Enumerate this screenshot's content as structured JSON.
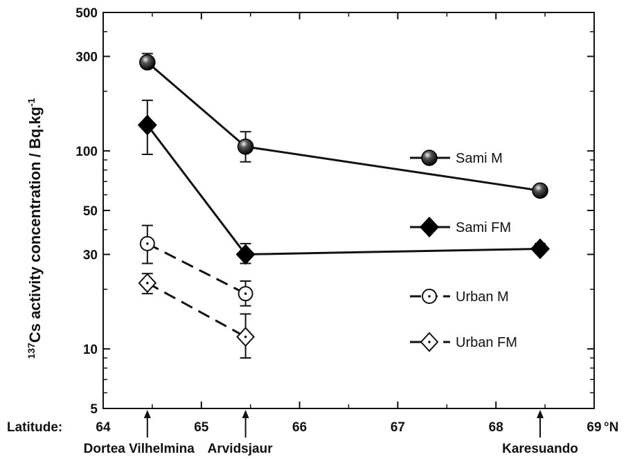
{
  "chart_data": {
    "type": "line",
    "ylabel_sup": "137",
    "ylabel": "Cs activity concentration / Bq.kg",
    "ylabel_exp": "-1",
    "yscale": "log",
    "ylim": [
      5,
      500
    ],
    "yticks": [
      5,
      10,
      30,
      50,
      100,
      300,
      500
    ],
    "xlabel_prefix": "Latitude:",
    "xunit": "°N",
    "xlim": [
      64,
      69
    ],
    "xticks": [
      64,
      65,
      66,
      67,
      68,
      69
    ],
    "sites": [
      {
        "name": "Dortea Vilhelmina",
        "x": 64.45
      },
      {
        "name": "Arvidsjaur",
        "x": 65.45
      },
      {
        "name": "Karesuando",
        "x": 68.45
      }
    ],
    "series": [
      {
        "name": "Sami M",
        "marker": "sphere",
        "line": "solid",
        "x": [
          64.45,
          65.45,
          68.45
        ],
        "y": [
          280,
          105,
          63
        ],
        "err_low": [
          265,
          88,
          63
        ],
        "err_high": [
          310,
          125,
          63
        ]
      },
      {
        "name": "Sami FM",
        "marker": "diamond-filled",
        "line": "solid",
        "x": [
          64.45,
          65.45,
          68.45
        ],
        "y": [
          135,
          30,
          32
        ],
        "err_low": [
          96,
          27,
          31
        ],
        "err_high": [
          180,
          34,
          34
        ]
      },
      {
        "name": "Urban M",
        "marker": "circle-open-dot",
        "line": "dashed",
        "x": [
          64.45,
          65.45
        ],
        "y": [
          34,
          19
        ],
        "err_low": [
          27,
          16.5
        ],
        "err_high": [
          42,
          22
        ]
      },
      {
        "name": "Urban FM",
        "marker": "diamond-open-dot",
        "line": "dashed",
        "x": [
          64.45,
          65.45
        ],
        "y": [
          21.5,
          11.5
        ],
        "err_low": [
          19,
          9
        ],
        "err_high": [
          24,
          15
        ]
      }
    ]
  }
}
